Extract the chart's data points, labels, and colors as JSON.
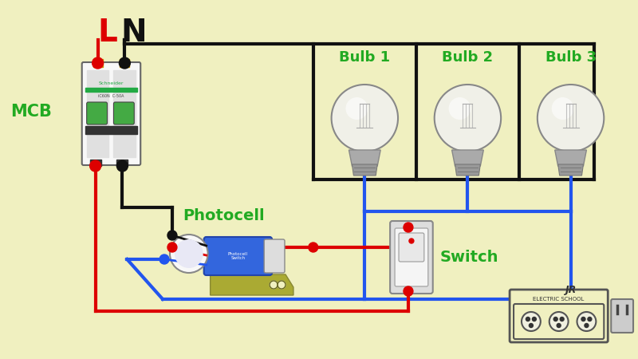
{
  "bg_color": "#f0f0c0",
  "L_label": "L",
  "N_label": "N",
  "L_color": "#dd0000",
  "N_color": "#111111",
  "MCB_label": "MCB",
  "MCB_label_color": "#22aa22",
  "Photocell_label": "Photocell",
  "Photocell_label_color": "#22aa22",
  "Switch_label": "Switch",
  "Switch_label_color": "#22aa22",
  "Bulb1_label": "Bulb 1",
  "Bulb2_label": "Bulb 2",
  "Bulb3_label": "Bulb 3",
  "bulb_label_color": "#22aa22",
  "wire_red": "#dd0000",
  "wire_black": "#111111",
  "wire_blue": "#2255ee",
  "lw": 3.0
}
